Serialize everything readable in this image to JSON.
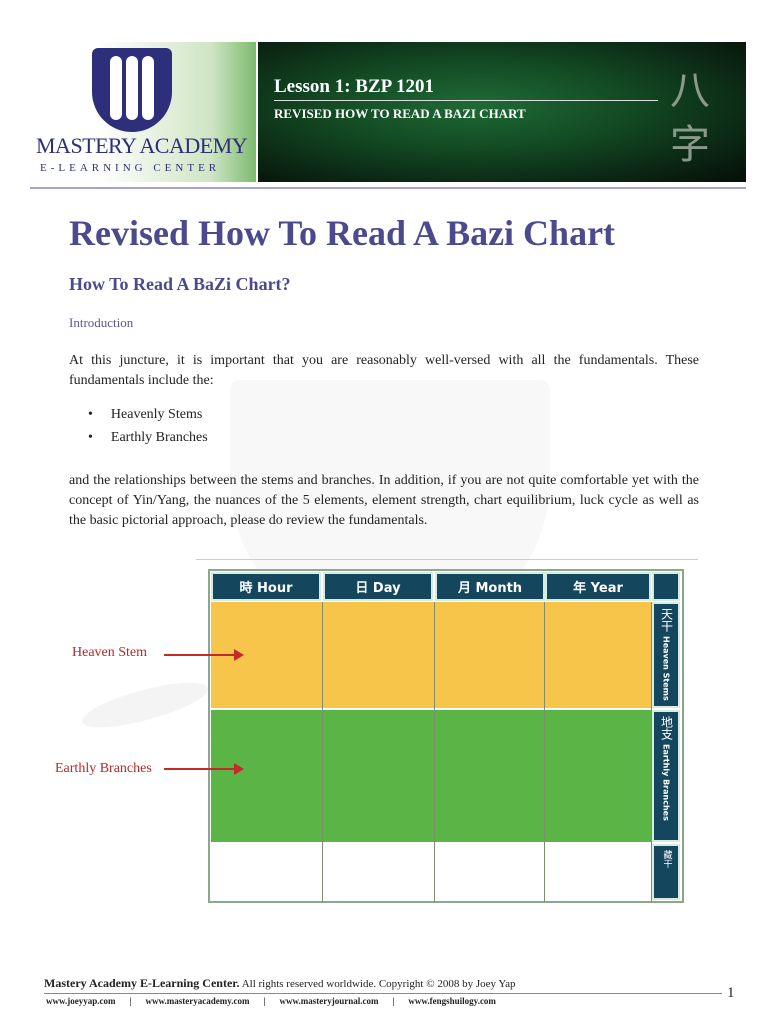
{
  "header": {
    "logo": {
      "name": "MASTERY ACADEMY",
      "subtitle": "E-LEARNING CENTER"
    },
    "lesson": "Lesson 1: BZP 1201",
    "lesson_title": "REVISED HOW TO READ A BAZI CHART",
    "chinese_chars": [
      "八",
      "字"
    ]
  },
  "title": "Revised How To Read A Bazi Chart",
  "subtitle": "How To Read A BaZi Chart?",
  "section": "Introduction",
  "para1": "At this juncture, it is important that you are reasonably well-versed with all the fundamentals. These fundamentals include the:",
  "bullets": [
    "Heavenly Stems",
    "Earthly Branches"
  ],
  "para2": "and the relationships between the stems and branches. In addition, if you are not quite comfortable yet with the concept of Yin/Yang, the nuances of the 5 elements, element strength, chart equilibrium, luck cycle as well as the basic pictorial approach, please do review the fundamentals.",
  "figure": {
    "columns": [
      "時 Hour",
      "日 Day",
      "月 Month",
      "年 Year"
    ],
    "side": [
      {
        "chinese": "天干",
        "english": "Heaven Stems"
      },
      {
        "chinese": "地支",
        "english": "Earthly Branches"
      },
      {
        "chinese": "藏干",
        "english": ""
      }
    ],
    "labels": [
      "Heaven Stem",
      "Earthly Branches"
    ],
    "colors": {
      "stem": "#f7c54a",
      "branch": "#5ab446",
      "header": "#14465e",
      "arrow": "#c42a2a"
    }
  },
  "footer": {
    "org": "Mastery Academy E-Learning Center.",
    "rights": "All rights reserved worldwide. Copyright © 2008 by Joey Yap",
    "links": [
      "www.joeyyap.com",
      "www.masteryacademy.com",
      "www.masteryjournal.com",
      "www.fengshuilogy.com"
    ],
    "page": "1"
  }
}
